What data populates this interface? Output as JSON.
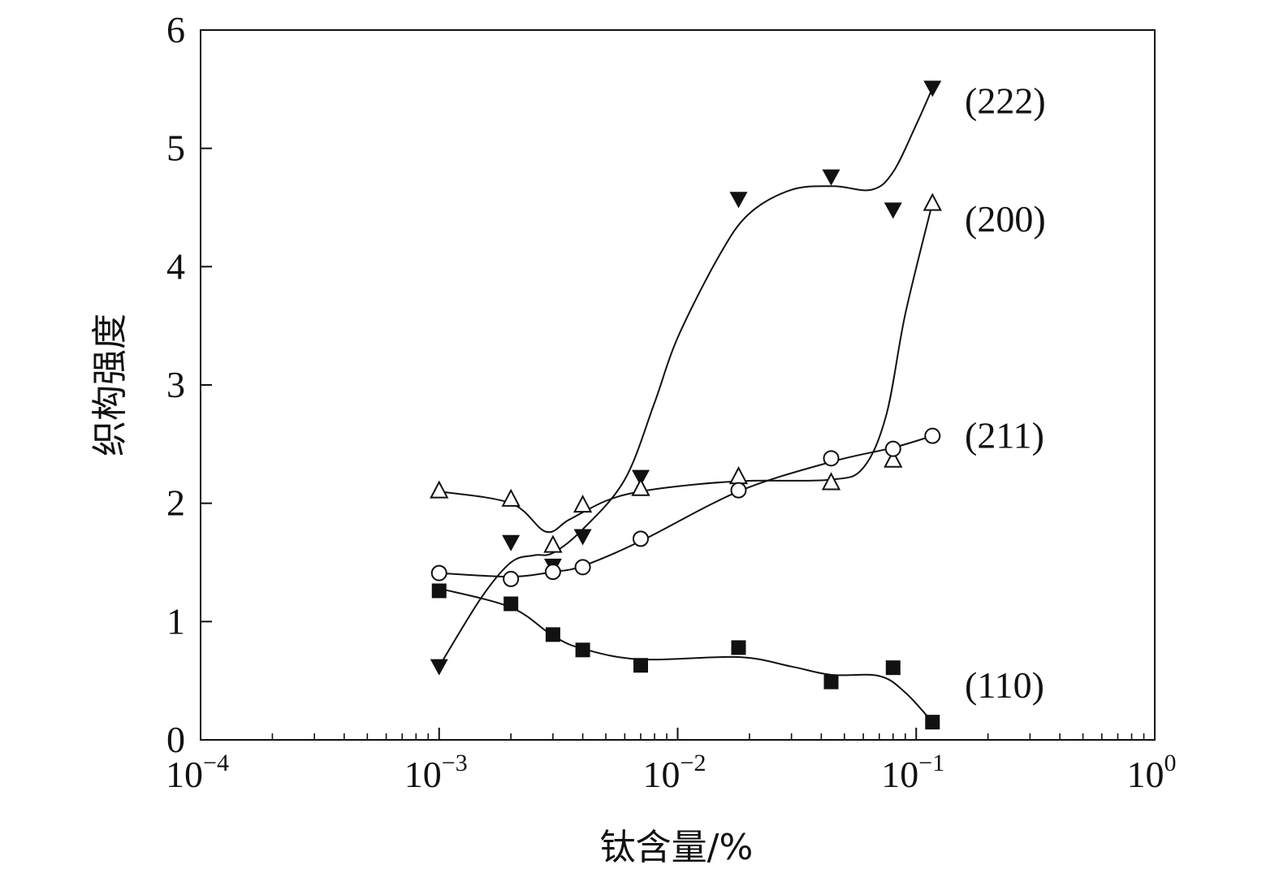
{
  "chart_data": {
    "type": "line",
    "title": "",
    "xlabel": "钛含量/%",
    "ylabel": "织构强度",
    "xscale": "log",
    "xlim": [
      0.0001,
      1
    ],
    "ylim": [
      0,
      6
    ],
    "grid": false,
    "x_ticks": [
      {
        "base": "10",
        "exp": "−4",
        "value": 0.0001
      },
      {
        "base": "10",
        "exp": "−3",
        "value": 0.001
      },
      {
        "base": "10",
        "exp": "−2",
        "value": 0.01
      },
      {
        "base": "10",
        "exp": "−1",
        "value": 0.1
      },
      {
        "base": "10",
        "exp": "0",
        "value": 1
      }
    ],
    "y_ticks": [
      "0",
      "1",
      "2",
      "3",
      "4",
      "5",
      "6"
    ],
    "x": [
      0.001,
      0.002,
      0.003,
      0.004,
      0.007,
      0.018,
      0.044,
      0.08,
      0.117
    ],
    "series": [
      {
        "name": "(222)",
        "marker": "triangle-down-filled",
        "values": [
          0.62,
          1.67,
          1.47,
          1.72,
          2.22,
          4.57,
          4.76,
          4.48,
          5.51
        ],
        "fit": [
          [
            0.001,
            0.62
          ],
          [
            0.0015,
            1.2
          ],
          [
            0.002,
            1.5
          ],
          [
            0.0025,
            1.56
          ],
          [
            0.003,
            1.58
          ],
          [
            0.004,
            1.78
          ],
          [
            0.006,
            2.2
          ],
          [
            0.008,
            2.85
          ],
          [
            0.01,
            3.4
          ],
          [
            0.015,
            4.1
          ],
          [
            0.02,
            4.45
          ],
          [
            0.03,
            4.65
          ],
          [
            0.045,
            4.68
          ],
          [
            0.065,
            4.65
          ],
          [
            0.08,
            4.8
          ],
          [
            0.1,
            5.2
          ],
          [
            0.117,
            5.51
          ]
        ]
      },
      {
        "name": "(200)",
        "marker": "triangle-up-open",
        "values": [
          2.11,
          2.04,
          1.65,
          1.99,
          2.13,
          2.23,
          2.18,
          2.37,
          4.54
        ],
        "fit": [
          [
            0.001,
            2.1
          ],
          [
            0.002,
            2.0
          ],
          [
            0.0028,
            1.76
          ],
          [
            0.0035,
            1.86
          ],
          [
            0.005,
            2.02
          ],
          [
            0.007,
            2.1
          ],
          [
            0.012,
            2.16
          ],
          [
            0.02,
            2.19
          ],
          [
            0.044,
            2.2
          ],
          [
            0.06,
            2.3
          ],
          [
            0.075,
            2.75
          ],
          [
            0.09,
            3.6
          ],
          [
            0.117,
            4.54
          ]
        ]
      },
      {
        "name": "(211)",
        "marker": "circle-open",
        "values": [
          1.41,
          1.36,
          1.42,
          1.46,
          1.7,
          2.11,
          2.38,
          2.46,
          2.57
        ],
        "fit": [
          [
            0.001,
            1.41
          ],
          [
            0.002,
            1.38
          ],
          [
            0.003,
            1.42
          ],
          [
            0.004,
            1.47
          ],
          [
            0.007,
            1.68
          ],
          [
            0.018,
            2.1
          ],
          [
            0.044,
            2.35
          ],
          [
            0.08,
            2.47
          ],
          [
            0.117,
            2.57
          ]
        ]
      },
      {
        "name": "(110)",
        "marker": "square-filled",
        "values": [
          1.26,
          1.15,
          0.89,
          0.76,
          0.63,
          0.78,
          0.49,
          0.61,
          0.15
        ],
        "fit": [
          [
            0.001,
            1.28
          ],
          [
            0.002,
            1.12
          ],
          [
            0.003,
            0.88
          ],
          [
            0.004,
            0.77
          ],
          [
            0.007,
            0.68
          ],
          [
            0.018,
            0.7
          ],
          [
            0.03,
            0.62
          ],
          [
            0.044,
            0.55
          ],
          [
            0.07,
            0.54
          ],
          [
            0.09,
            0.4
          ],
          [
            0.117,
            0.15
          ]
        ]
      }
    ],
    "series_labels": [
      {
        "text": "(222)",
        "y": 5.4
      },
      {
        "text": "(200)",
        "y": 4.4
      },
      {
        "text": "(211)",
        "y": 2.57
      },
      {
        "text": "(110)",
        "y": 0.46
      }
    ],
    "legend": "inline-right"
  }
}
